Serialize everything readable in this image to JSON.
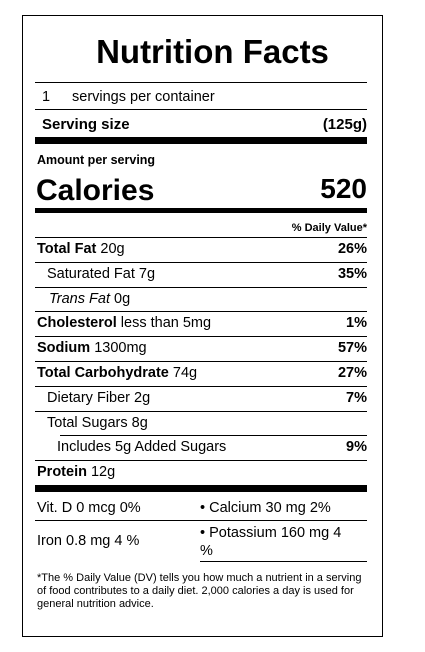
{
  "title": "Nutrition Facts",
  "servings": {
    "count": 1,
    "label": "servings per container"
  },
  "serving_size": {
    "label": "Serving size",
    "value": "(125g)"
  },
  "amount_per_serving": "Amount per serving",
  "calories": {
    "label": "Calories",
    "value": 520
  },
  "daily_value_header": "% Daily Value*",
  "nutrients": [
    {
      "name": "Total Fat",
      "amount": "20g",
      "dv": "26%"
    },
    {
      "name": "Saturated Fat",
      "amount": "7g",
      "dv": "35%"
    },
    {
      "name": "Trans Fat",
      "amount": "0g"
    },
    {
      "name": "Cholesterol",
      "amount": "less than 5mg",
      "dv": "1%"
    },
    {
      "name": "Sodium",
      "amount": "1300mg",
      "dv": "57%"
    },
    {
      "name": "Total Carbohydrate",
      "amount": "74g",
      "dv": "27%"
    },
    {
      "name": "Dietary Fiber",
      "amount": "2g",
      "dv": "7%"
    },
    {
      "name": "Total Sugars",
      "amount": "8g"
    },
    {
      "name": "Includes 5g Added Sugars",
      "dv": "9%"
    },
    {
      "name": "Protein",
      "amount": "12g"
    }
  ],
  "vitamins": [
    "Vit. D 0 mcg 0%",
    "• Calcium 30 mg 2%",
    "Iron 0.8 mg 4 %",
    "• Potassium 160 mg 4 %"
  ],
  "footnote": "*The % Daily Value (DV) tells you how much a nutrient in a serving of food contributes to a daily diet. 2,000 calories a day is used for general nutrition advice."
}
